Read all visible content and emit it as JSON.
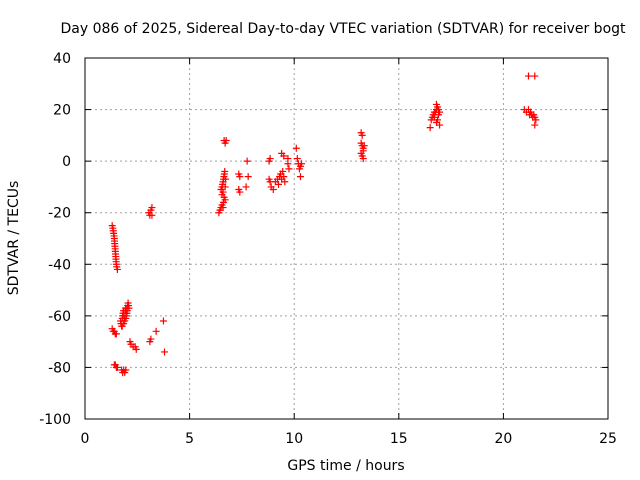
{
  "chart_data": {
    "type": "scatter",
    "title": "Day 086 of 2025, Sidereal Day-to-day VTEC variation (SDTVAR) for receiver bogt",
    "xlabel": "GPS time / hours",
    "ylabel": "SDTVAR / TECUs",
    "xlim": [
      0,
      25
    ],
    "ylim": [
      -100,
      40
    ],
    "xticks": [
      0,
      5,
      10,
      15,
      20,
      25
    ],
    "yticks": [
      -100,
      -80,
      -60,
      -40,
      -20,
      0,
      20,
      40
    ],
    "grid": true,
    "marker": "plus",
    "series": [
      {
        "name": "SDTVAR",
        "color": "#ff0000",
        "points": [
          [
            1.3,
            -25
          ],
          [
            1.33,
            -26
          ],
          [
            1.35,
            -27
          ],
          [
            1.37,
            -28
          ],
          [
            1.39,
            -29
          ],
          [
            1.4,
            -30
          ],
          [
            1.41,
            -31
          ],
          [
            1.42,
            -32
          ],
          [
            1.43,
            -33
          ],
          [
            1.44,
            -34
          ],
          [
            1.45,
            -35
          ],
          [
            1.46,
            -36
          ],
          [
            1.47,
            -37
          ],
          [
            1.48,
            -38
          ],
          [
            1.49,
            -39
          ],
          [
            1.5,
            -40
          ],
          [
            1.52,
            -41
          ],
          [
            1.55,
            -42
          ],
          [
            1.3,
            -65
          ],
          [
            1.35,
            -66
          ],
          [
            1.4,
            -66
          ],
          [
            1.45,
            -67
          ],
          [
            1.5,
            -67
          ],
          [
            1.4,
            -79
          ],
          [
            1.45,
            -79
          ],
          [
            1.5,
            -80
          ],
          [
            1.55,
            -80
          ],
          [
            1.7,
            -62
          ],
          [
            1.72,
            -63
          ],
          [
            1.75,
            -64
          ],
          [
            1.78,
            -61
          ],
          [
            1.8,
            -60
          ],
          [
            1.82,
            -59
          ],
          [
            1.84,
            -58
          ],
          [
            1.86,
            -60
          ],
          [
            1.88,
            -61
          ],
          [
            1.9,
            -62
          ],
          [
            1.92,
            -58
          ],
          [
            1.94,
            -57
          ],
          [
            1.96,
            -59
          ],
          [
            1.98,
            -60
          ],
          [
            2.0,
            -57
          ],
          [
            2.02,
            -58
          ],
          [
            2.04,
            -56
          ],
          [
            2.06,
            -55
          ],
          [
            2.08,
            -56
          ],
          [
            2.1,
            -57
          ],
          [
            2.0,
            -59
          ],
          [
            1.95,
            -61
          ],
          [
            1.85,
            -63
          ],
          [
            1.78,
            -64
          ],
          [
            1.75,
            -81
          ],
          [
            1.8,
            -82
          ],
          [
            1.85,
            -81
          ],
          [
            1.9,
            -82
          ],
          [
            1.95,
            -81
          ],
          [
            2.15,
            -70
          ],
          [
            2.2,
            -71
          ],
          [
            2.3,
            -72
          ],
          [
            2.4,
            -72
          ],
          [
            2.45,
            -73
          ],
          [
            3.05,
            -20
          ],
          [
            3.1,
            -21
          ],
          [
            3.15,
            -19
          ],
          [
            3.2,
            -18
          ],
          [
            3.2,
            -21
          ],
          [
            3.1,
            -70
          ],
          [
            3.15,
            -69
          ],
          [
            3.4,
            -66
          ],
          [
            3.75,
            -62
          ],
          [
            3.8,
            -74
          ],
          [
            6.4,
            -20
          ],
          [
            6.45,
            -19
          ],
          [
            6.5,
            -18
          ],
          [
            6.55,
            -17
          ],
          [
            6.6,
            -18
          ],
          [
            6.62,
            -16
          ],
          [
            6.5,
            -11
          ],
          [
            6.55,
            -10
          ],
          [
            6.58,
            -9
          ],
          [
            6.6,
            -8
          ],
          [
            6.62,
            -7
          ],
          [
            6.64,
            -6
          ],
          [
            6.66,
            -5
          ],
          [
            6.68,
            -4
          ],
          [
            6.55,
            -13
          ],
          [
            6.6,
            -12
          ],
          [
            6.65,
            -14
          ],
          [
            6.7,
            -15
          ],
          [
            6.7,
            -10
          ],
          [
            6.72,
            -7
          ],
          [
            6.65,
            8
          ],
          [
            6.7,
            7
          ],
          [
            6.75,
            8
          ],
          [
            7.35,
            -5
          ],
          [
            7.4,
            -6
          ],
          [
            7.35,
            -11
          ],
          [
            7.4,
            -12
          ],
          [
            7.7,
            -10
          ],
          [
            7.75,
            0
          ],
          [
            7.8,
            -6
          ],
          [
            8.8,
            0
          ],
          [
            8.85,
            1
          ],
          [
            8.8,
            -7
          ],
          [
            8.85,
            -8
          ],
          [
            8.9,
            -10
          ],
          [
            9.0,
            -11
          ],
          [
            9.1,
            -8
          ],
          [
            9.2,
            -7
          ],
          [
            9.25,
            -9
          ],
          [
            9.3,
            -6
          ],
          [
            9.35,
            -5
          ],
          [
            9.4,
            -7
          ],
          [
            9.45,
            -4
          ],
          [
            9.5,
            -6
          ],
          [
            9.55,
            -8
          ],
          [
            9.4,
            3
          ],
          [
            9.5,
            2
          ],
          [
            9.7,
            1
          ],
          [
            9.7,
            -1
          ],
          [
            9.75,
            -3
          ],
          [
            10.1,
            5
          ],
          [
            10.15,
            1
          ],
          [
            10.2,
            -1
          ],
          [
            10.25,
            -3
          ],
          [
            10.3,
            -2
          ],
          [
            10.3,
            -6
          ],
          [
            10.35,
            -1
          ],
          [
            13.2,
            11
          ],
          [
            13.25,
            10
          ],
          [
            13.2,
            7
          ],
          [
            13.25,
            6
          ],
          [
            13.3,
            5
          ],
          [
            13.2,
            3
          ],
          [
            13.25,
            2
          ],
          [
            13.3,
            4
          ],
          [
            13.35,
            6
          ],
          [
            13.3,
            1
          ],
          [
            16.5,
            13
          ],
          [
            16.55,
            16
          ],
          [
            16.6,
            17
          ],
          [
            16.65,
            18
          ],
          [
            16.7,
            17
          ],
          [
            16.75,
            19
          ],
          [
            16.8,
            20
          ],
          [
            16.85,
            21
          ],
          [
            16.9,
            20
          ],
          [
            16.95,
            19
          ],
          [
            16.9,
            18
          ],
          [
            16.85,
            16
          ],
          [
            16.8,
            15
          ],
          [
            16.95,
            14
          ],
          [
            16.7,
            19
          ],
          [
            16.8,
            22
          ],
          [
            21.2,
            33
          ],
          [
            21.5,
            33
          ],
          [
            21.0,
            20
          ],
          [
            21.1,
            19
          ],
          [
            21.2,
            20
          ],
          [
            21.25,
            18
          ],
          [
            21.3,
            19
          ],
          [
            21.35,
            18
          ],
          [
            21.4,
            17
          ],
          [
            21.45,
            18
          ],
          [
            21.5,
            17
          ],
          [
            21.55,
            16
          ],
          [
            21.5,
            14
          ]
        ]
      }
    ]
  }
}
